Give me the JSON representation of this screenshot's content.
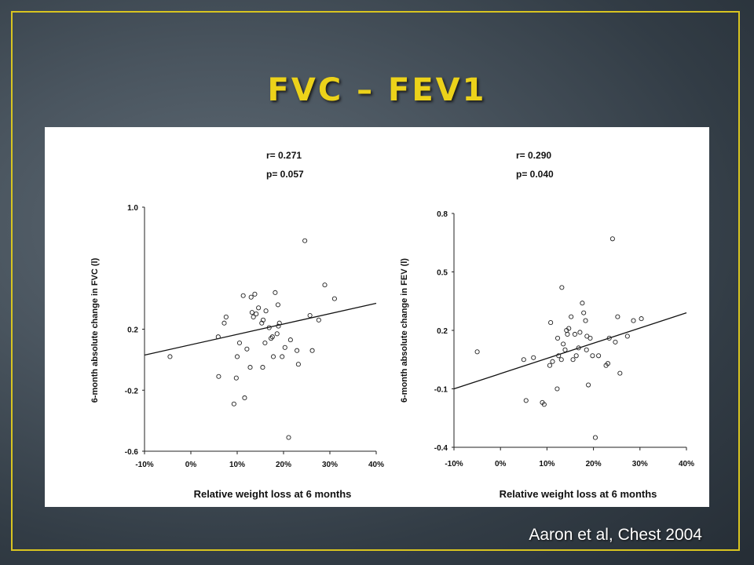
{
  "slide": {
    "title": "FVC – FEV1",
    "citation": "Aaron et al, Chest 2004",
    "colors": {
      "title": "#ecd21a",
      "frame": "#d8c420",
      "panel": "#ffffff"
    }
  },
  "chart_data": [
    {
      "type": "scatter",
      "stats": {
        "r": "r= 0.271",
        "p": "p= 0.057"
      },
      "xlabel": "Relative weight loss at 6 months",
      "ylabel": "6-month absolute change in FVC (l)",
      "xlim": [
        -10,
        40
      ],
      "ylim": [
        -0.6,
        1.0
      ],
      "x_ticks": [
        -10,
        0,
        10,
        20,
        30,
        40
      ],
      "x_tick_labels": [
        "-10%",
        "0%",
        "10%",
        "20%",
        "30%",
        "40%"
      ],
      "y_ticks": [
        -0.6,
        -0.2,
        0.2,
        1.0
      ],
      "y_tick_labels": [
        "-0.6",
        "-0.2",
        "0.2",
        "1.0"
      ],
      "regression_line": {
        "x": [
          -10,
          40
        ],
        "y": [
          0.03,
          0.37
        ]
      },
      "points": {
        "x": [
          -4.5,
          5.9,
          11.3,
          7.6,
          10.5,
          7.2,
          13.0,
          13.8,
          13.5,
          13.2,
          14.1,
          14.6,
          15.3,
          16.0,
          16.2,
          16.9,
          17.3,
          17.6,
          18.2,
          18.8,
          18.6,
          18.9,
          19.1,
          20.3,
          21.5,
          11.6,
          9.8,
          9.3,
          6.0,
          10.0,
          12.1,
          12.8,
          15.5,
          17.8,
          19.7,
          23.2,
          24.6,
          25.7,
          28.9,
          31.0,
          26.2,
          27.6,
          21.1,
          22.9,
          15.6
        ],
        "y": [
          0.02,
          0.15,
          0.42,
          0.28,
          0.11,
          0.24,
          0.41,
          0.43,
          0.28,
          0.31,
          0.3,
          0.34,
          0.24,
          0.11,
          0.32,
          0.21,
          0.14,
          0.15,
          0.44,
          0.36,
          0.17,
          0.22,
          0.24,
          0.08,
          0.13,
          -0.25,
          -0.12,
          -0.29,
          -0.11,
          0.02,
          0.07,
          -0.05,
          -0.05,
          0.02,
          0.02,
          -0.03,
          0.78,
          0.29,
          0.49,
          0.4,
          0.06,
          0.26,
          -0.51,
          0.06,
          0.26
        ]
      }
    },
    {
      "type": "scatter",
      "stats": {
        "r": "r= 0.290",
        "p": "p= 0.040"
      },
      "xlabel": "Relative weight loss at 6 months",
      "ylabel": "6-month absolute change in FEV (l)",
      "xlim": [
        -10,
        40
      ],
      "ylim": [
        -0.4,
        0.8
      ],
      "x_ticks": [
        -10,
        0,
        10,
        20,
        30,
        40
      ],
      "x_tick_labels": [
        "-10%",
        "0%",
        "10%",
        "20%",
        "30%",
        "40%"
      ],
      "y_ticks": [
        -0.4,
        -0.1,
        0.2,
        0.5,
        0.8
      ],
      "y_tick_labels": [
        "-0.4",
        "-0.1",
        "0.2",
        "0.5",
        "0.8"
      ],
      "regression_line": {
        "x": [
          -10,
          40
        ],
        "y": [
          -0.1,
          0.29
        ]
      },
      "points": {
        "x": [
          -5.0,
          5.0,
          7.1,
          5.5,
          9.0,
          9.4,
          10.8,
          11.2,
          12.2,
          12.5,
          13.1,
          13.5,
          13.2,
          13.9,
          14.2,
          14.4,
          14.7,
          15.2,
          15.6,
          16.0,
          16.3,
          16.8,
          17.1,
          17.6,
          17.9,
          18.3,
          18.6,
          18.5,
          18.9,
          19.3,
          19.8,
          20.4,
          21.1,
          22.7,
          23.1,
          23.4,
          24.1,
          24.7,
          25.2,
          25.7,
          27.3,
          28.6,
          30.3,
          12.3,
          10.6
        ],
        "y": [
          0.09,
          0.05,
          0.06,
          -0.16,
          -0.17,
          -0.18,
          0.24,
          0.04,
          -0.1,
          0.07,
          0.05,
          0.13,
          0.42,
          0.1,
          0.2,
          0.18,
          0.21,
          0.27,
          0.05,
          0.18,
          0.07,
          0.11,
          0.19,
          0.34,
          0.29,
          0.25,
          0.17,
          0.1,
          -0.08,
          0.16,
          0.07,
          -0.35,
          0.07,
          0.02,
          0.03,
          0.16,
          0.67,
          0.14,
          0.27,
          -0.02,
          0.17,
          0.25,
          0.26,
          0.16,
          0.02
        ]
      }
    }
  ]
}
